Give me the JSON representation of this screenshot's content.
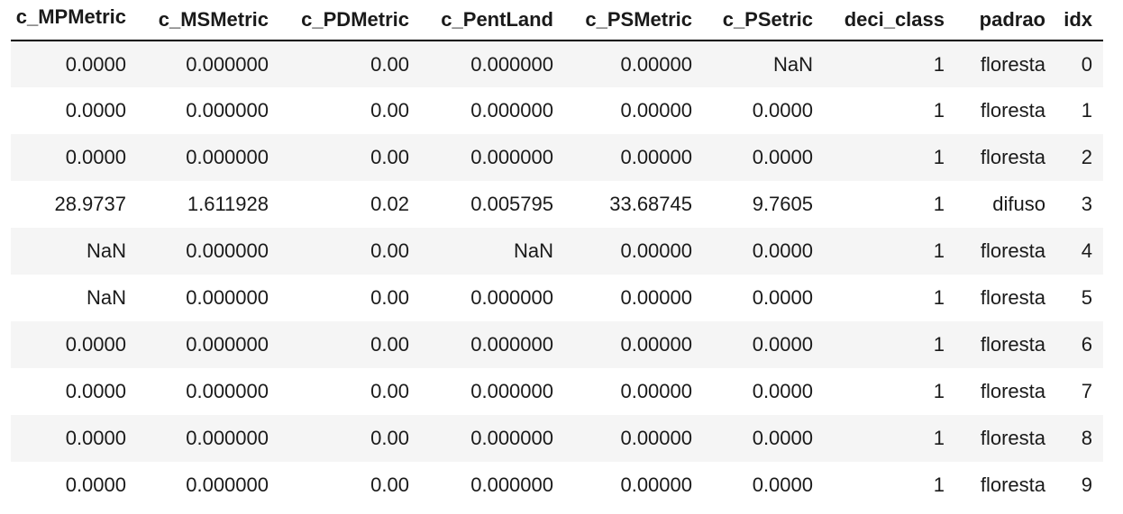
{
  "table": {
    "columns": [
      "c_MPMetric",
      "c_MSMetric",
      "c_PDMetric",
      "c_PentLand",
      "c_PSMetric",
      "c_PSetric",
      "deci_class",
      "padrao",
      "idx"
    ],
    "rows": [
      [
        "0.0000",
        "0.000000",
        "0.00",
        "0.000000",
        "0.00000",
        "NaN",
        "1",
        "floresta",
        "0"
      ],
      [
        "0.0000",
        "0.000000",
        "0.00",
        "0.000000",
        "0.00000",
        "0.0000",
        "1",
        "floresta",
        "1"
      ],
      [
        "0.0000",
        "0.000000",
        "0.00",
        "0.000000",
        "0.00000",
        "0.0000",
        "1",
        "floresta",
        "2"
      ],
      [
        "28.9737",
        "1.611928",
        "0.02",
        "0.005795",
        "33.68745",
        "9.7605",
        "1",
        "difuso",
        "3"
      ],
      [
        "NaN",
        "0.000000",
        "0.00",
        "NaN",
        "0.00000",
        "0.0000",
        "1",
        "floresta",
        "4"
      ],
      [
        "NaN",
        "0.000000",
        "0.00",
        "0.000000",
        "0.00000",
        "0.0000",
        "1",
        "floresta",
        "5"
      ],
      [
        "0.0000",
        "0.000000",
        "0.00",
        "0.000000",
        "0.00000",
        "0.0000",
        "1",
        "floresta",
        "6"
      ],
      [
        "0.0000",
        "0.000000",
        "0.00",
        "0.000000",
        "0.00000",
        "0.0000",
        "1",
        "floresta",
        "7"
      ],
      [
        "0.0000",
        "0.000000",
        "0.00",
        "0.000000",
        "0.00000",
        "0.0000",
        "1",
        "floresta",
        "8"
      ],
      [
        "0.0000",
        "0.000000",
        "0.00",
        "0.000000",
        "0.00000",
        "0.0000",
        "1",
        "floresta",
        "9"
      ]
    ]
  }
}
